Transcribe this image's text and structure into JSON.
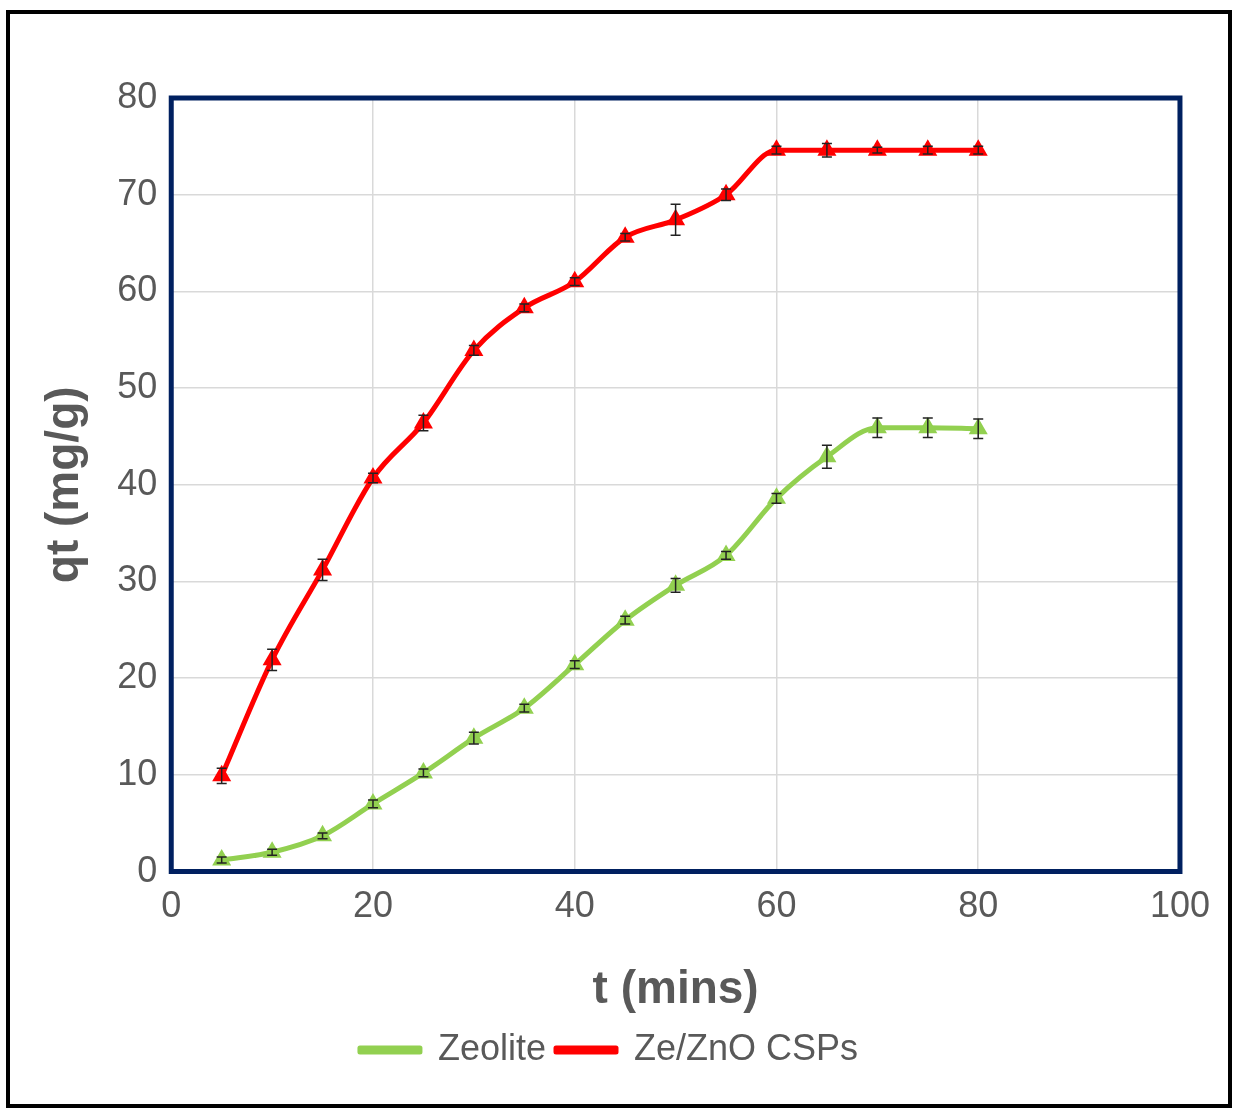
{
  "chart_data": {
    "type": "line",
    "xlabel": "t (mins)",
    "ylabel": "qt (mg/g)",
    "xlim": [
      0,
      100
    ],
    "xticks": [
      0,
      20,
      40,
      60,
      80,
      100
    ],
    "ylim": [
      0,
      80
    ],
    "yticks": [
      0,
      10,
      20,
      30,
      40,
      50,
      60,
      70,
      80
    ],
    "grid": true,
    "legend": "bottom",
    "marker": "triangle",
    "line_style": "solid",
    "series": [
      {
        "name": "Zeolite",
        "color": "#92d050",
        "x": [
          5,
          10,
          15,
          20,
          25,
          30,
          35,
          40,
          45,
          50,
          55,
          60,
          65,
          70,
          75,
          80
        ],
        "values": [
          1.2,
          2.0,
          3.7,
          7.0,
          10.2,
          13.8,
          16.9,
          21.4,
          26.0,
          29.6,
          32.7,
          38.6,
          42.9,
          45.9,
          45.9,
          45.8
        ],
        "errors": [
          0.3,
          0.3,
          0.3,
          0.4,
          0.4,
          0.6,
          0.4,
          0.4,
          0.4,
          0.7,
          0.4,
          0.5,
          1.2,
          1.0,
          1.0,
          1.0
        ]
      },
      {
        "name": "Ze/ZnO CSPs",
        "color": "#ff0000",
        "x": [
          5,
          10,
          15,
          20,
          25,
          30,
          35,
          40,
          45,
          50,
          55,
          60,
          65,
          70,
          75,
          80
        ],
        "values": [
          9.9,
          21.9,
          31.2,
          40.7,
          46.4,
          53.9,
          58.3,
          61.0,
          65.6,
          67.4,
          70.0,
          74.6,
          74.6,
          74.6,
          74.6,
          74.6
        ],
        "errors": [
          0.8,
          1.1,
          1.1,
          0.5,
          0.8,
          0.5,
          0.4,
          0.4,
          0.4,
          1.6,
          0.6,
          0.4,
          0.7,
          0.3,
          0.4,
          0.4
        ]
      }
    ]
  }
}
